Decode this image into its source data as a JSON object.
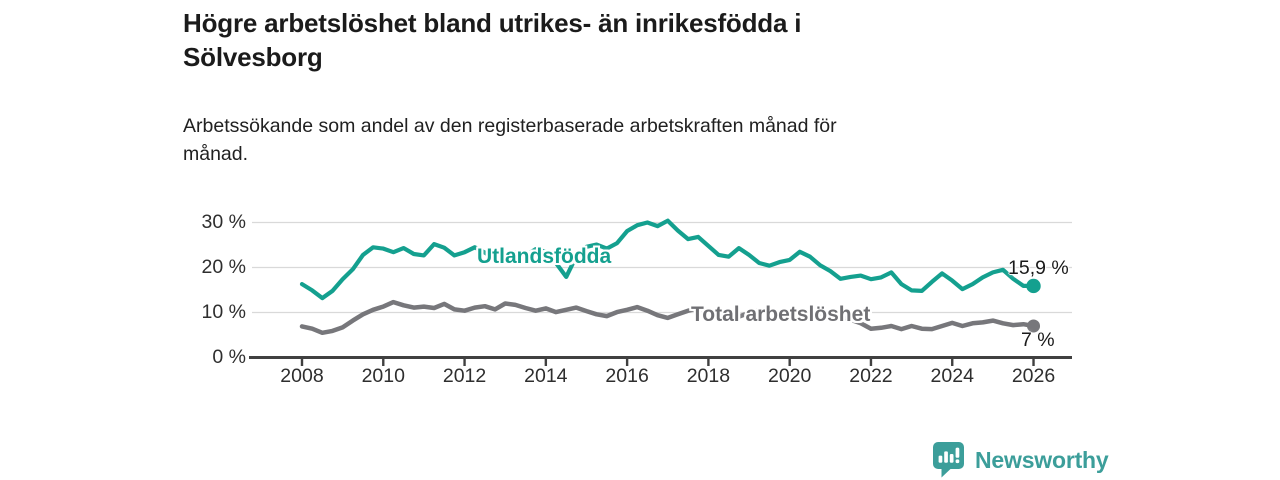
{
  "title": "Högre arbetslöshet bland utrikes- än inrikesfödda i Sölvesborg",
  "subtitle": "Arbetssökande som andel av den registerbaserade arbetskraften månad för månad.",
  "branding": {
    "logo_text": "Newsworthy",
    "logo_color": "#3c9e9a",
    "logo_icon": "bar-chart-speech-bubble"
  },
  "colors": {
    "accent_teal": "#14a08f",
    "neutral_gray": "#77777b",
    "grid": "#d9d9d9",
    "axis": "#404040",
    "text": "#1b1b1b"
  },
  "chart_data": {
    "type": "line",
    "title": "Högre arbetslöshet bland utrikes- än inrikesfödda i Sölvesborg",
    "subtitle": "Arbetssökande som andel av den registerbaserade arbetskraften månad för månad.",
    "xlabel": "",
    "ylabel": "",
    "ylim": [
      0,
      32
    ],
    "xlim": [
      2007.7,
      2027.0
    ],
    "grid": "horizontal",
    "legend_position": "inline-labels",
    "y_ticks": [
      {
        "label": "0 %",
        "value": 0
      },
      {
        "label": "10 %",
        "value": 10
      },
      {
        "label": "20 %",
        "value": 20
      },
      {
        "label": "30 %",
        "value": 30
      }
    ],
    "x_ticks": [
      {
        "label": "2008",
        "value": 2008
      },
      {
        "label": "2010",
        "value": 2010
      },
      {
        "label": "2012",
        "value": 2012
      },
      {
        "label": "2014",
        "value": 2014
      },
      {
        "label": "2016",
        "value": 2016
      },
      {
        "label": "2018",
        "value": 2018
      },
      {
        "label": "2020",
        "value": 2020
      },
      {
        "label": "2022",
        "value": 2022
      },
      {
        "label": "2024",
        "value": 2024
      },
      {
        "label": "2026",
        "value": 2026
      }
    ],
    "x": [
      2008.0,
      2008.25,
      2008.5,
      2008.75,
      2009.0,
      2009.25,
      2009.5,
      2009.75,
      2010.0,
      2010.25,
      2010.5,
      2010.75,
      2011.0,
      2011.25,
      2011.5,
      2011.75,
      2012.0,
      2012.25,
      2012.5,
      2012.75,
      2013.0,
      2013.25,
      2013.5,
      2013.75,
      2014.0,
      2014.25,
      2014.5,
      2014.75,
      2015.0,
      2015.25,
      2015.5,
      2015.75,
      2016.0,
      2016.25,
      2016.5,
      2016.75,
      2017.0,
      2017.25,
      2017.5,
      2017.75,
      2018.0,
      2018.25,
      2018.5,
      2018.75,
      2019.0,
      2019.25,
      2019.5,
      2019.75,
      2020.0,
      2020.25,
      2020.5,
      2020.75,
      2021.0,
      2021.25,
      2021.5,
      2021.75,
      2022.0,
      2022.25,
      2022.5,
      2022.75,
      2023.0,
      2023.25,
      2023.5,
      2023.75,
      2024.0,
      2024.25,
      2024.5,
      2024.75,
      2025.0,
      2025.25,
      2025.5,
      2025.75,
      2026.0
    ],
    "series": [
      {
        "name": "Utlandsfödda",
        "color": "#14a08f",
        "end_label": "15,9 %",
        "end_value": 15.9,
        "values": [
          16.3,
          14.9,
          13.2,
          14.8,
          17.4,
          19.6,
          22.8,
          24.5,
          24.2,
          23.4,
          24.3,
          23.0,
          22.7,
          25.2,
          24.4,
          22.7,
          23.4,
          24.5,
          23.3,
          21.8,
          22.4,
          23.4,
          22.6,
          24.1,
          23.5,
          21.0,
          17.9,
          22.5,
          24.6,
          25.1,
          24.2,
          25.4,
          28.1,
          29.4,
          30.0,
          29.2,
          30.4,
          28.2,
          26.3,
          26.8,
          24.8,
          22.8,
          22.4,
          24.3,
          22.8,
          21.0,
          20.4,
          21.2,
          21.7,
          23.5,
          22.4,
          20.5,
          19.2,
          17.5,
          17.9,
          18.2,
          17.4,
          17.8,
          18.9,
          16.3,
          14.9,
          14.8,
          16.8,
          18.7,
          17.1,
          15.2,
          16.3,
          17.8,
          18.9,
          19.5,
          17.5,
          15.9,
          15.9
        ]
      },
      {
        "name": "Total arbetslöshet",
        "color": "#77777b",
        "end_label": "7 %",
        "end_value": 7.0,
        "values": [
          6.9,
          6.4,
          5.5,
          5.9,
          6.7,
          8.2,
          9.6,
          10.6,
          11.3,
          12.3,
          11.6,
          11.1,
          11.3,
          11.0,
          11.9,
          10.7,
          10.4,
          11.1,
          11.4,
          10.7,
          12.0,
          11.7,
          11.0,
          10.4,
          10.9,
          10.1,
          10.6,
          11.1,
          10.3,
          9.6,
          9.2,
          10.1,
          10.6,
          11.2,
          10.4,
          9.4,
          8.8,
          9.6,
          10.4,
          10.9,
          10.4,
          9.4,
          8.6,
          9.1,
          9.9,
          10.6,
          10.4,
          9.6,
          9.3,
          10.1,
          10.4,
          9.9,
          9.4,
          9.1,
          8.4,
          7.6,
          6.4,
          6.6,
          7.0,
          6.3,
          7.0,
          6.4,
          6.3,
          7.0,
          7.7,
          7.0,
          7.6,
          7.8,
          8.2,
          7.6,
          7.2,
          7.4,
          7.0
        ]
      }
    ]
  }
}
